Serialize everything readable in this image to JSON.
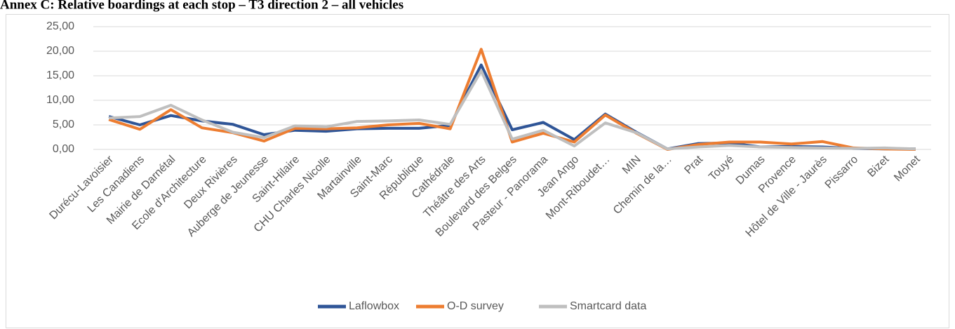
{
  "chart_data": {
    "type": "line",
    "title": "Annex C: Relative boardings at each stop – T3 direction 2 – all vehicles",
    "categories": [
      "Durécu-Lavoisier",
      "Les Canadiens",
      "Mairie de Darnétal",
      "Ecole d'Architecture",
      "Deux Rivières",
      "Auberge de Jeunesse",
      "Saint-Hilaire",
      "CHU Charles Nicolle",
      "Martainville",
      "Saint-Marc",
      "République",
      "Cathédrale",
      "Théâtre des Arts",
      "Boulevard des Belges",
      "Pasteur - Panorama",
      "Jean Ango",
      "Mont-Riboudet…",
      "MIN",
      "Chemin de la…",
      "Prat",
      "Touyé",
      "Dumas",
      "Provence",
      "Hôtel de Ville - Jaurès",
      "Pissarro",
      "Bizet",
      "Monet"
    ],
    "series": [
      {
        "name": "Laflowbox",
        "color": "#2f5597",
        "values": [
          6.7,
          5.0,
          6.9,
          5.8,
          5.1,
          3.0,
          3.9,
          3.7,
          4.2,
          4.3,
          4.3,
          4.9,
          17.2,
          4.0,
          5.5,
          2.0,
          7.2,
          3.5,
          0.1,
          1.2,
          1.3,
          0.5,
          0.6,
          0.5,
          0.2,
          0.1,
          0.1
        ]
      },
      {
        "name": "O-D survey",
        "color": "#ed7d31",
        "values": [
          6.1,
          4.1,
          8.1,
          4.4,
          3.4,
          1.7,
          4.3,
          4.2,
          4.4,
          5.0,
          5.3,
          4.2,
          20.4,
          1.5,
          3.3,
          1.5,
          7.0,
          3.3,
          0.0,
          1.0,
          1.5,
          1.5,
          1.1,
          1.6,
          0.3,
          0.1,
          0.0
        ]
      },
      {
        "name": "Smartcard data",
        "color": "#bfbfbf",
        "values": [
          6.4,
          6.7,
          9.0,
          6.0,
          3.5,
          2.4,
          4.8,
          4.6,
          5.7,
          5.8,
          6.0,
          5.1,
          16.0,
          2.1,
          3.9,
          0.7,
          5.4,
          3.4,
          0.1,
          0.5,
          0.8,
          0.5,
          0.4,
          0.3,
          0.2,
          0.3,
          0.1
        ]
      }
    ],
    "ylim": [
      0,
      25
    ],
    "yticks": [
      {
        "value": 0,
        "label": "0,00"
      },
      {
        "value": 5,
        "label": "5,00"
      },
      {
        "value": 10,
        "label": "10,00"
      },
      {
        "value": 15,
        "label": "15,00"
      },
      {
        "value": 20,
        "label": "20,00"
      },
      {
        "value": 25,
        "label": "25,00"
      }
    ],
    "grid": true,
    "legend": "bottom"
  }
}
